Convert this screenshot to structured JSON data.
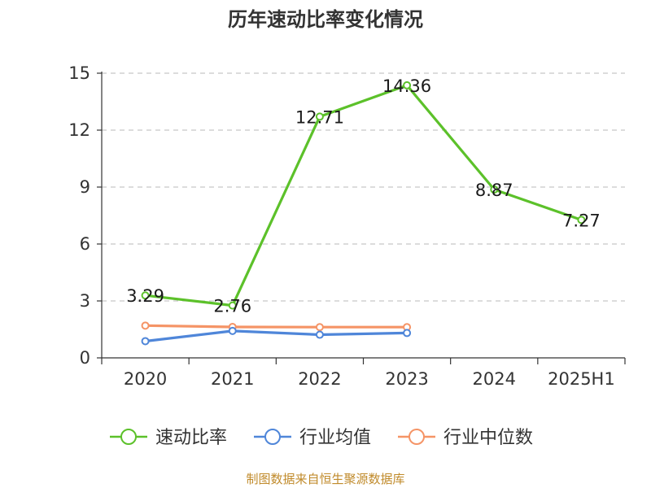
{
  "chart_data": {
    "type": "line",
    "title": "历年速动比率变化情况",
    "categories": [
      "2020",
      "2021",
      "2022",
      "2023",
      "2024",
      "2025H1"
    ],
    "ylim": [
      0,
      15
    ],
    "yticks": [
      0,
      3,
      6,
      9,
      12,
      15
    ],
    "grid": true,
    "legend_position": "bottom",
    "series": [
      {
        "name": "速动比率",
        "color": "#5cc12a",
        "labeled": true,
        "values": [
          3.29,
          2.76,
          12.71,
          14.36,
          8.87,
          7.27
        ]
      },
      {
        "name": "行业均值",
        "color": "#4f86d9",
        "labeled": false,
        "values": [
          0.88,
          1.42,
          1.22,
          1.31,
          null,
          null
        ]
      },
      {
        "name": "行业中位数",
        "color": "#f59466",
        "labeled": false,
        "values": [
          1.7,
          1.63,
          1.62,
          1.62,
          null,
          null
        ]
      }
    ]
  },
  "source": "制图数据来自恒生聚源数据库"
}
